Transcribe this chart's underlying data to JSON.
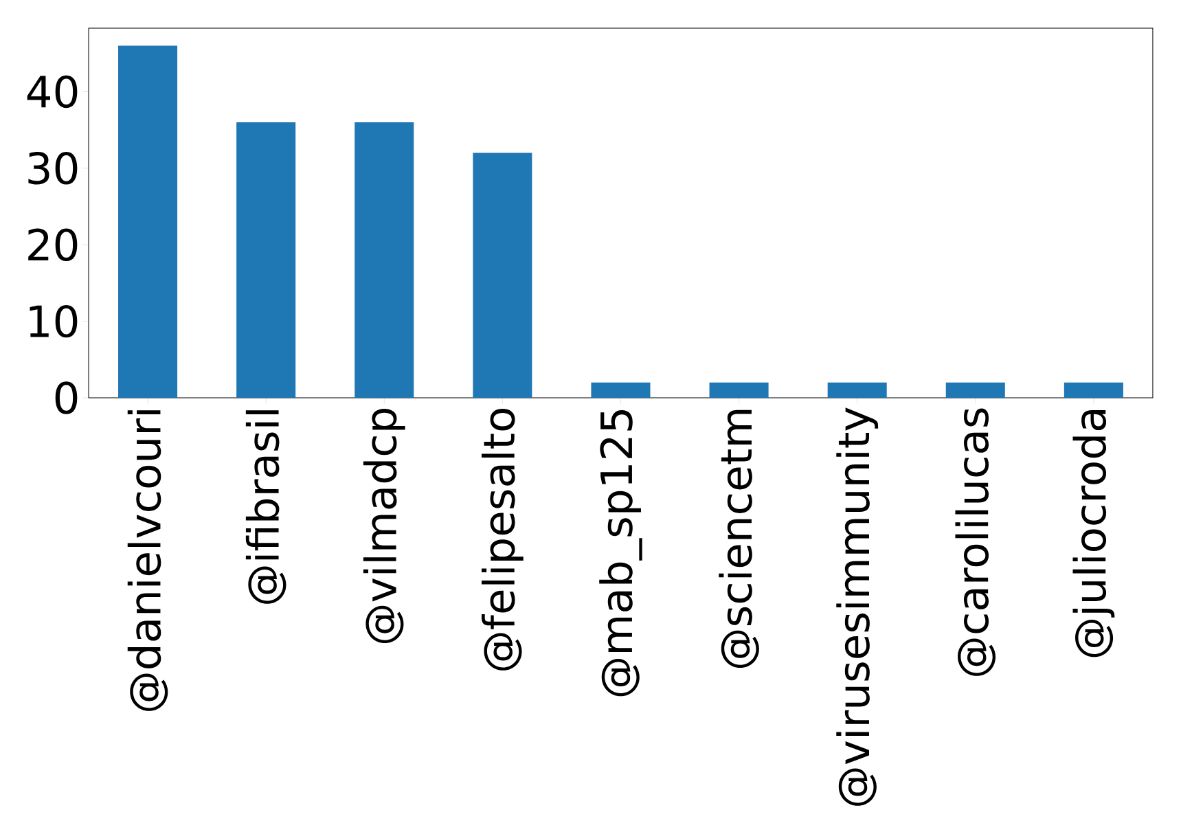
{
  "chart_data": {
    "type": "bar",
    "categories": [
      "@danielvcouri",
      "@ifibrasil",
      "@vilmadcp",
      "@felipesalto",
      "@mab_sp125",
      "@sciencetm",
      "@virusesimmunity",
      "@carolilucas",
      "@juliocroda"
    ],
    "values": [
      46,
      36,
      36,
      32,
      2,
      2,
      2,
      2,
      2
    ],
    "color": "#1f77b4",
    "ylim": [
      0,
      48.3
    ],
    "yticks": [
      0,
      10,
      20,
      30,
      40
    ]
  }
}
